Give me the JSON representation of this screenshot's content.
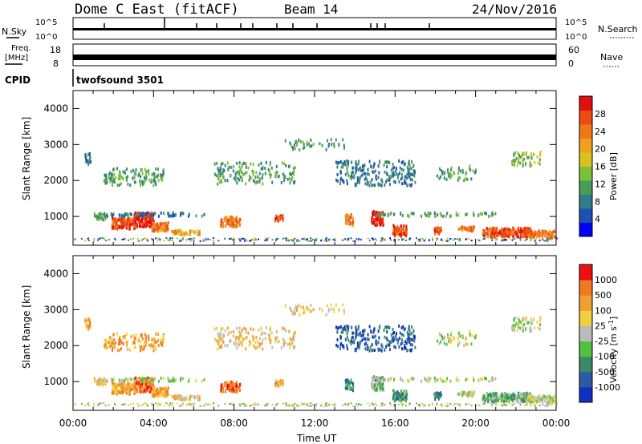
{
  "header": {
    "title": "Dome C East (fitACF)",
    "beam": "Beam 14",
    "date": "24/Nov/2016"
  },
  "top_panels": {
    "nsky_label": "N.Sky",
    "nsky_ticks": [
      "10^5",
      "10^0"
    ],
    "nsearch_label": "N.Search",
    "nsearch_ticks": [
      "10^5",
      "10^0"
    ],
    "freq_label": "Freq.",
    "freq_unit": "[MHz]",
    "freq_ticks": [
      "18",
      "8"
    ],
    "nave_label": "Nave",
    "nave_ticks": [
      "60",
      "0"
    ],
    "cpid_label": "CPID",
    "cpid_value": "twofsound 3501"
  },
  "chart_data": [
    {
      "type": "heatmap",
      "parameter": "Power",
      "ylabel": "Slant Range [km]",
      "yticks": [
        "1000",
        "2000",
        "3000",
        "4000"
      ],
      "ylim": [
        200,
        4500
      ],
      "colorbar_label": "Power [dB]",
      "colorbar_ticks": [
        "4",
        "8",
        "12",
        "16",
        "20",
        "24",
        "28"
      ],
      "colorbar_colors": [
        "#0000ff",
        "#1e50b4",
        "#2f7d8c",
        "#4a9a5a",
        "#7bbf3a",
        "#d9c21e",
        "#f0a020",
        "#f07818",
        "#ee4a14",
        "#e01010"
      ]
    },
    {
      "type": "heatmap",
      "parameter": "Velocity",
      "ylabel": "Slant Range [km]",
      "yticks": [
        "1000",
        "2000",
        "3000",
        "4000"
      ],
      "ylim": [
        200,
        4500
      ],
      "colorbar_label": "Velocity [m s^-1]",
      "colorbar_ticks": [
        "1000",
        "500",
        "100",
        "25",
        "-25",
        "-100",
        "-500",
        "-1000"
      ],
      "colorbar_colors": [
        "#1030c0",
        "#2a5aa8",
        "#3a8a6a",
        "#52c040",
        "#bbbbbb",
        "#f0d040",
        "#f0a030",
        "#f07a20",
        "#ee1010"
      ]
    }
  ],
  "xaxis": {
    "ticks": [
      "00:00",
      "04:00",
      "08:00",
      "12:00",
      "16:00",
      "20:00",
      "00:00"
    ],
    "label": "Time UT"
  }
}
